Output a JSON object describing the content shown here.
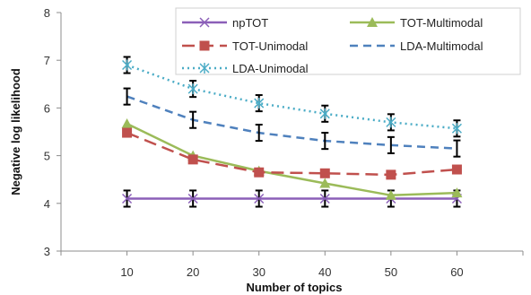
{
  "chart_data": {
    "type": "line",
    "xlabel": "Number of topics",
    "ylabel": "Negative log likelihood",
    "x": [
      10,
      20,
      30,
      40,
      50,
      60
    ],
    "xlim": [
      0,
      70
    ],
    "ylim": [
      3,
      8
    ],
    "yticks": [
      3,
      4,
      5,
      6,
      7,
      8
    ],
    "grid": false,
    "legend_position": "top-right",
    "series": [
      {
        "name": "npTOT",
        "values": [
          4.1,
          4.1,
          4.1,
          4.1,
          4.1,
          4.1
        ],
        "error": [
          0.17,
          0.17,
          0.17,
          0.17,
          0.17,
          0.17
        ],
        "color": "#8b5fb8",
        "dash": "solid",
        "marker": "x"
      },
      {
        "name": "TOT-Multimodal",
        "values": [
          5.67,
          5.0,
          4.68,
          4.42,
          4.17,
          4.22
        ],
        "error": [
          0,
          0,
          0,
          0,
          0,
          0
        ],
        "color": "#9bbb59",
        "dash": "solid",
        "marker": "triangle"
      },
      {
        "name": "TOT-Unimodal",
        "values": [
          5.48,
          4.92,
          4.65,
          4.63,
          4.6,
          4.71
        ],
        "error": [
          0,
          0,
          0,
          0,
          0,
          0
        ],
        "color": "#c0504d",
        "dash": "longdash",
        "marker": "square"
      },
      {
        "name": "LDA-Multimodal",
        "values": [
          6.24,
          5.75,
          5.48,
          5.31,
          5.22,
          5.15
        ],
        "error": [
          0.17,
          0.17,
          0.17,
          0.17,
          0.17,
          0.17
        ],
        "color": "#4f81bd",
        "dash": "dash",
        "marker": "none"
      },
      {
        "name": "LDA-Unimodal",
        "values": [
          6.9,
          6.4,
          6.1,
          5.88,
          5.7,
          5.57
        ],
        "error": [
          0.17,
          0.17,
          0.17,
          0.17,
          0.17,
          0.17
        ],
        "color": "#4bacc6",
        "dash": "dot",
        "marker": "asterisk"
      }
    ]
  }
}
